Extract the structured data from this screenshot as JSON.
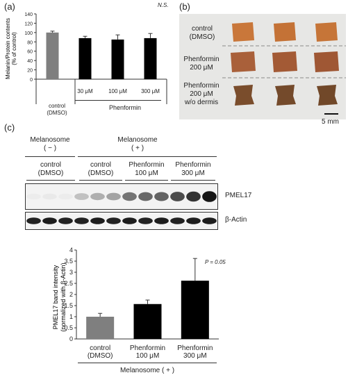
{
  "panels": {
    "a": "(a)",
    "b": "(b)",
    "c": "(c)"
  },
  "colors": {
    "control": "#7f7f7f",
    "treatment": "#000000",
    "tissue": "#c9773a",
    "tissue_dark": "#7a4d2c"
  },
  "panel_a": {
    "ylabel": "Melanin/Protein contents\n(% of control)",
    "ns_label": "N.S.",
    "group_label": "Phenformin",
    "control_label_line1": "control",
    "control_label_line2": "(DMSO)"
  },
  "panel_b": {
    "row1_line1": "control",
    "row1_line2": "(DMSO)",
    "row2_line1": "Phenformin",
    "row2_line2": "200 μM",
    "row3_line1": "Phenformin",
    "row3_line2": "200 μM",
    "row3_line3": "w/o dermis",
    "scale_label": "5 mm"
  },
  "panel_c_blot": {
    "mel_minus_line1": "Melanosome",
    "mel_minus_line2": "( − )",
    "mel_plus_line1": "Melanosome",
    "mel_plus_line2": "( + )",
    "ctrl1_line1": "control",
    "ctrl1_line2": "(DMSO)",
    "ctrl2_line1": "control",
    "ctrl2_line2": "(DMSO)",
    "ph100_line1": "Phenformin",
    "ph100_line2": "100 μM",
    "ph300_line1": "Phenformin",
    "ph300_line2": "300 μM",
    "band1_label": "PMEL17",
    "band2_label": "β-Actin",
    "pmel_intensities": [
      0.04,
      0.05,
      0.04,
      0.22,
      0.3,
      0.35,
      0.55,
      0.6,
      0.62,
      0.72,
      0.82,
      0.95
    ],
    "actin_intensities": [
      0.9,
      0.92,
      0.9,
      0.9,
      0.92,
      0.9,
      0.92,
      0.9,
      0.92,
      0.9,
      0.92,
      0.92
    ]
  },
  "panel_c_chart": {
    "ylabel": "PMEL17 band intensity\n(normalized with β-Actin)",
    "pvalue": "P = 0.05",
    "xlabel": "Melanosome ( + )"
  },
  "chart_data": [
    {
      "type": "bar",
      "categories": [
        "control\n(DMSO)",
        "30 μM",
        "100 μM",
        "300 μM"
      ],
      "values": [
        100,
        88,
        85,
        88
      ],
      "errors": [
        3,
        4,
        10,
        10
      ],
      "ylim": [
        0,
        140
      ],
      "yticks": [
        0,
        20,
        40,
        60,
        80,
        100,
        120,
        140
      ],
      "ylabel": "Melanin/Protein contents\n(% of control)",
      "annotations": [
        "N.S."
      ]
    },
    {
      "type": "bar",
      "categories": [
        "control\n(DMSO)",
        "Phenformin\n100 μM",
        "Phenformin\n300 μM"
      ],
      "values": [
        1.0,
        1.57,
        2.62
      ],
      "errors": [
        0.15,
        0.18,
        1.0
      ],
      "ylim": [
        0,
        4
      ],
      "yticks": [
        0,
        0.5,
        1,
        1.5,
        2,
        2.5,
        3,
        3.5,
        4
      ],
      "ylabel": "PMEL17 band intensity\n(normalized with β-Actin)",
      "xlabel": "Melanosome ( + )",
      "annotations": [
        "P = 0.05"
      ]
    }
  ]
}
